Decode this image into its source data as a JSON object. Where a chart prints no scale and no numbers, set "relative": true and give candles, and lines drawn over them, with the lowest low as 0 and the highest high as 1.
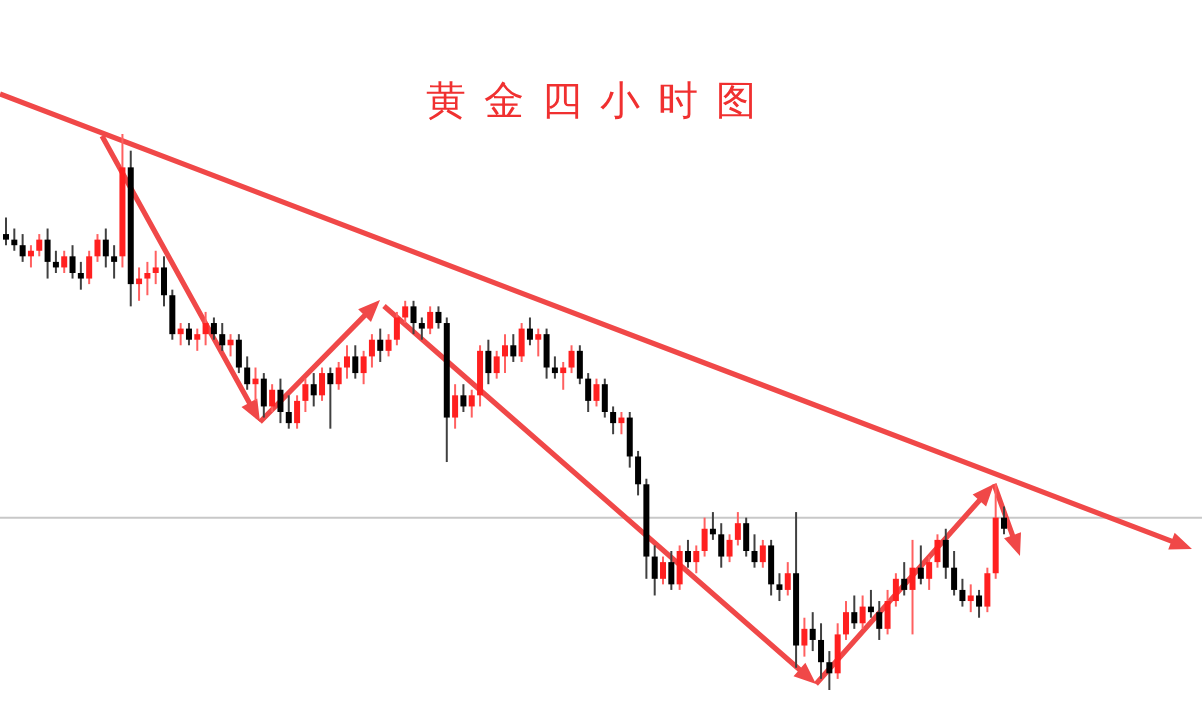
{
  "chart_data": {
    "type": "candlestick",
    "title": "黄金四小时图",
    "relative": true,
    "ref_lines": [
      {
        "axis": "y",
        "value": 0.31,
        "color": "#c8c8c8"
      }
    ],
    "categories": [
      null,
      null,
      null,
      null,
      null,
      null,
      null,
      null,
      null,
      null,
      null,
      null,
      null,
      null,
      null,
      null,
      null,
      null,
      null,
      null,
      null,
      null,
      null,
      null,
      null,
      null,
      null,
      null,
      null,
      null,
      null,
      null,
      null,
      null,
      null,
      null,
      null,
      null,
      null,
      null,
      null,
      null,
      null,
      null,
      null,
      null,
      null,
      null,
      null,
      null,
      null,
      null,
      null,
      null,
      null,
      null,
      null,
      null,
      null,
      null,
      null,
      null,
      null,
      null,
      null,
      null,
      null,
      null,
      null,
      null,
      null,
      null,
      null,
      null,
      null,
      null,
      null,
      null,
      null,
      null,
      null,
      null,
      null,
      null,
      null,
      null,
      null,
      null,
      null,
      null,
      null,
      null,
      null,
      null,
      null,
      null,
      null,
      null,
      null,
      null,
      null,
      null,
      null,
      null,
      null,
      null,
      null,
      null,
      null,
      null,
      null,
      null,
      null,
      null,
      null,
      null,
      null,
      null,
      null,
      null,
      null
    ],
    "ohlc": [
      [
        0.82,
        0.85,
        0.8,
        0.81
      ],
      [
        0.81,
        0.83,
        0.79,
        0.8
      ],
      [
        0.8,
        0.82,
        0.77,
        0.78
      ],
      [
        0.78,
        0.8,
        0.76,
        0.79
      ],
      [
        0.79,
        0.82,
        0.78,
        0.81
      ],
      [
        0.81,
        0.83,
        0.74,
        0.77
      ],
      [
        0.77,
        0.79,
        0.75,
        0.76
      ],
      [
        0.76,
        0.79,
        0.75,
        0.78
      ],
      [
        0.78,
        0.8,
        0.74,
        0.75
      ],
      [
        0.75,
        0.77,
        0.72,
        0.74
      ],
      [
        0.74,
        0.79,
        0.73,
        0.78
      ],
      [
        0.78,
        0.82,
        0.77,
        0.81
      ],
      [
        0.81,
        0.83,
        0.76,
        0.78
      ],
      [
        0.78,
        0.8,
        0.74,
        0.77
      ],
      [
        0.78,
        1.0,
        0.76,
        0.94
      ],
      [
        0.94,
        0.97,
        0.69,
        0.73
      ],
      [
        0.73,
        0.76,
        0.7,
        0.74
      ],
      [
        0.74,
        0.77,
        0.71,
        0.75
      ],
      [
        0.75,
        0.79,
        0.73,
        0.76
      ],
      [
        0.76,
        0.78,
        0.69,
        0.71
      ],
      [
        0.71,
        0.72,
        0.63,
        0.64
      ],
      [
        0.64,
        0.66,
        0.62,
        0.65
      ],
      [
        0.65,
        0.66,
        0.62,
        0.63
      ],
      [
        0.63,
        0.65,
        0.61,
        0.64
      ],
      [
        0.64,
        0.68,
        0.62,
        0.66
      ],
      [
        0.66,
        0.67,
        0.63,
        0.64
      ],
      [
        0.64,
        0.66,
        0.61,
        0.62
      ],
      [
        0.62,
        0.64,
        0.6,
        0.63
      ],
      [
        0.63,
        0.64,
        0.57,
        0.58
      ],
      [
        0.58,
        0.6,
        0.54,
        0.55
      ],
      [
        0.55,
        0.58,
        0.52,
        0.56
      ],
      [
        0.56,
        0.57,
        0.49,
        0.51
      ],
      [
        0.51,
        0.55,
        0.5,
        0.54
      ],
      [
        0.54,
        0.56,
        0.48,
        0.5
      ],
      [
        0.5,
        0.53,
        0.47,
        0.48
      ],
      [
        0.48,
        0.53,
        0.47,
        0.52
      ],
      [
        0.52,
        0.56,
        0.5,
        0.55
      ],
      [
        0.55,
        0.57,
        0.51,
        0.53
      ],
      [
        0.53,
        0.58,
        0.52,
        0.57
      ],
      [
        0.57,
        0.58,
        0.47,
        0.55
      ],
      [
        0.55,
        0.59,
        0.54,
        0.58
      ],
      [
        0.58,
        0.62,
        0.56,
        0.6
      ],
      [
        0.6,
        0.62,
        0.56,
        0.57
      ],
      [
        0.57,
        0.61,
        0.55,
        0.6
      ],
      [
        0.6,
        0.64,
        0.58,
        0.63
      ],
      [
        0.63,
        0.65,
        0.59,
        0.61
      ],
      [
        0.61,
        0.64,
        0.6,
        0.63
      ],
      [
        0.63,
        0.68,
        0.62,
        0.67
      ],
      [
        0.67,
        0.7,
        0.66,
        0.69
      ],
      [
        0.69,
        0.7,
        0.64,
        0.66
      ],
      [
        0.66,
        0.67,
        0.63,
        0.65
      ],
      [
        0.65,
        0.69,
        0.64,
        0.68
      ],
      [
        0.68,
        0.69,
        0.65,
        0.66
      ],
      [
        0.66,
        0.67,
        0.41,
        0.49
      ],
      [
        0.49,
        0.55,
        0.47,
        0.53
      ],
      [
        0.53,
        0.55,
        0.5,
        0.51
      ],
      [
        0.51,
        0.54,
        0.49,
        0.53
      ],
      [
        0.53,
        0.62,
        0.51,
        0.61
      ],
      [
        0.61,
        0.63,
        0.55,
        0.57
      ],
      [
        0.57,
        0.61,
        0.56,
        0.6
      ],
      [
        0.6,
        0.64,
        0.57,
        0.62
      ],
      [
        0.62,
        0.64,
        0.59,
        0.6
      ],
      [
        0.6,
        0.66,
        0.59,
        0.65
      ],
      [
        0.65,
        0.67,
        0.62,
        0.63
      ],
      [
        0.63,
        0.65,
        0.6,
        0.64
      ],
      [
        0.64,
        0.65,
        0.56,
        0.58
      ],
      [
        0.58,
        0.6,
        0.56,
        0.57
      ],
      [
        0.57,
        0.59,
        0.54,
        0.58
      ],
      [
        0.58,
        0.62,
        0.57,
        0.61
      ],
      [
        0.61,
        0.62,
        0.55,
        0.56
      ],
      [
        0.56,
        0.57,
        0.5,
        0.52
      ],
      [
        0.52,
        0.56,
        0.51,
        0.55
      ],
      [
        0.55,
        0.56,
        0.49,
        0.5
      ],
      [
        0.5,
        0.51,
        0.46,
        0.48
      ],
      [
        0.48,
        0.5,
        0.46,
        0.49
      ],
      [
        0.49,
        0.5,
        0.4,
        0.42
      ],
      [
        0.42,
        0.43,
        0.35,
        0.37
      ],
      [
        0.37,
        0.38,
        0.2,
        0.24
      ],
      [
        0.24,
        0.26,
        0.17,
        0.2
      ],
      [
        0.2,
        0.24,
        0.19,
        0.23
      ],
      [
        0.23,
        0.25,
        0.18,
        0.19
      ],
      [
        0.19,
        0.26,
        0.18,
        0.25
      ],
      [
        0.25,
        0.27,
        0.22,
        0.23
      ],
      [
        0.23,
        0.26,
        0.21,
        0.25
      ],
      [
        0.25,
        0.31,
        0.24,
        0.29
      ],
      [
        0.29,
        0.32,
        0.27,
        0.28
      ],
      [
        0.28,
        0.3,
        0.22,
        0.24
      ],
      [
        0.24,
        0.28,
        0.23,
        0.27
      ],
      [
        0.27,
        0.32,
        0.26,
        0.3
      ],
      [
        0.3,
        0.31,
        0.24,
        0.25
      ],
      [
        0.25,
        0.28,
        0.22,
        0.23
      ],
      [
        0.23,
        0.27,
        0.22,
        0.26
      ],
      [
        0.26,
        0.27,
        0.17,
        0.19
      ],
      [
        0.19,
        0.21,
        0.16,
        0.18
      ],
      [
        0.18,
        0.23,
        0.17,
        0.21
      ],
      [
        0.21,
        0.32,
        0.04,
        0.08
      ],
      [
        0.08,
        0.13,
        0.06,
        0.11
      ],
      [
        0.11,
        0.14,
        0.07,
        0.09
      ],
      [
        0.09,
        0.12,
        0.02,
        0.05
      ],
      [
        0.05,
        0.07,
        0.0,
        0.03
      ],
      [
        0.03,
        0.12,
        0.02,
        0.1
      ],
      [
        0.1,
        0.16,
        0.09,
        0.14
      ],
      [
        0.14,
        0.17,
        0.11,
        0.12
      ],
      [
        0.12,
        0.17,
        0.11,
        0.15
      ],
      [
        0.15,
        0.18,
        0.13,
        0.14
      ],
      [
        0.14,
        0.16,
        0.09,
        0.11
      ],
      [
        0.11,
        0.18,
        0.1,
        0.16
      ],
      [
        0.16,
        0.21,
        0.15,
        0.2
      ],
      [
        0.2,
        0.23,
        0.17,
        0.18
      ],
      [
        0.18,
        0.27,
        0.1,
        0.22
      ],
      [
        0.22,
        0.26,
        0.19,
        0.2
      ],
      [
        0.2,
        0.24,
        0.18,
        0.23
      ],
      [
        0.23,
        0.28,
        0.22,
        0.27
      ],
      [
        0.27,
        0.29,
        0.2,
        0.22
      ],
      [
        0.22,
        0.25,
        0.17,
        0.18
      ],
      [
        0.18,
        0.2,
        0.15,
        0.16
      ],
      [
        0.16,
        0.19,
        0.14,
        0.17
      ],
      [
        0.17,
        0.18,
        0.13,
        0.15
      ],
      [
        0.15,
        0.22,
        0.14,
        0.21
      ],
      [
        0.21,
        0.37,
        0.2,
        0.31
      ],
      [
        0.31,
        0.33,
        0.28,
        0.29
      ]
    ]
  }
}
